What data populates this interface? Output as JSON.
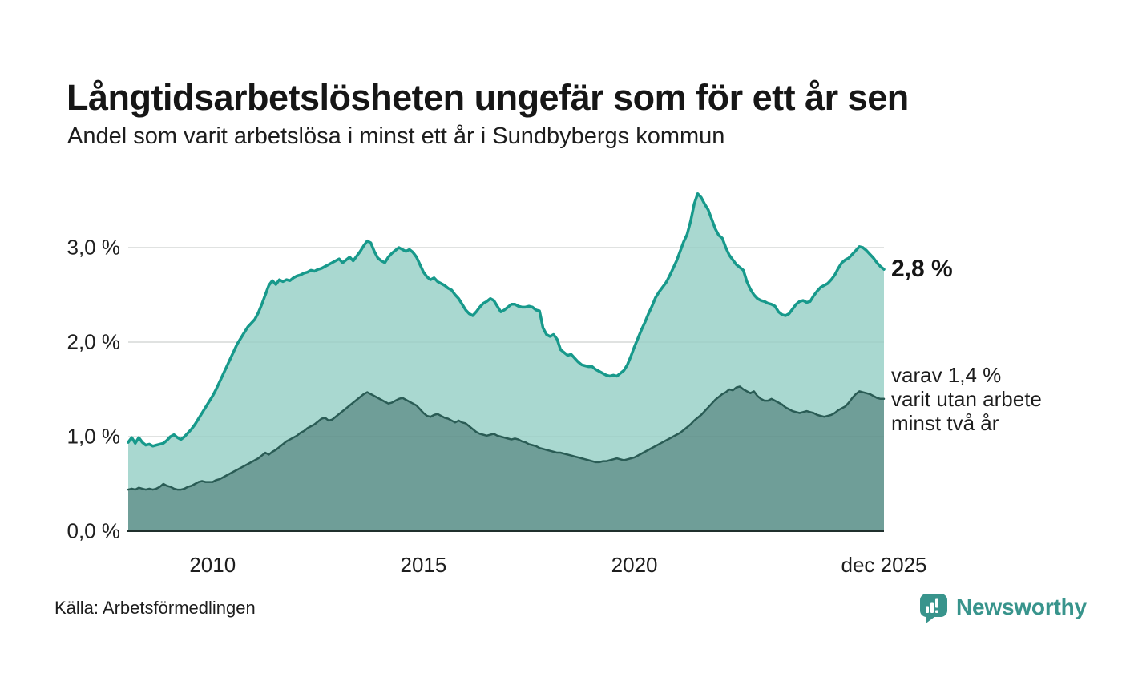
{
  "chart_data": {
    "type": "area",
    "title": "Långtidsarbetslösheten ungefär som för ett år sen",
    "subtitle": "Andel som varit arbetslösa i minst ett år i Sundbybergs kommun",
    "unit": "%",
    "x_axis": {
      "range_years": [
        2008.0,
        2025.917
      ],
      "ticks": [
        {
          "label": "2010",
          "year": 2010
        },
        {
          "label": "2015",
          "year": 2015
        },
        {
          "label": "2020",
          "year": 2020
        },
        {
          "label": "dec 2025",
          "year": 2025.917
        }
      ]
    },
    "y_axis": {
      "range": [
        0,
        3.6
      ],
      "gridline_values": [
        1,
        2,
        3
      ],
      "ticks": [
        {
          "label": "0,0 %",
          "value": 0
        },
        {
          "label": "1,0 %",
          "value": 1
        },
        {
          "label": "2,0 %",
          "value": 2
        },
        {
          "label": "3,0 %",
          "value": 3
        }
      ]
    },
    "series": [
      {
        "id": "unemployed-at-least-one-year",
        "label": "arbetslösa minst ett år",
        "start_year": 2008,
        "points_per_year": 12,
        "line_color": "#17998b",
        "fill_color": "#a9d8d0",
        "line_width": 3.5,
        "values": [
          0.94,
          0.99,
          0.93,
          0.99,
          0.94,
          0.91,
          0.92,
          0.9,
          0.91,
          0.92,
          0.93,
          0.96,
          1.0,
          1.02,
          0.99,
          0.97,
          1.0,
          1.04,
          1.08,
          1.13,
          1.19,
          1.25,
          1.31,
          1.37,
          1.43,
          1.5,
          1.58,
          1.66,
          1.74,
          1.82,
          1.9,
          1.98,
          2.04,
          2.1,
          2.16,
          2.2,
          2.24,
          2.31,
          2.4,
          2.5,
          2.6,
          2.65,
          2.61,
          2.66,
          2.64,
          2.66,
          2.65,
          2.68,
          2.7,
          2.71,
          2.73,
          2.74,
          2.76,
          2.75,
          2.77,
          2.78,
          2.8,
          2.82,
          2.84,
          2.86,
          2.88,
          2.84,
          2.87,
          2.9,
          2.86,
          2.91,
          2.96,
          3.02,
          3.07,
          3.05,
          2.96,
          2.89,
          2.86,
          2.84,
          2.9,
          2.94,
          2.97,
          3.0,
          2.98,
          2.96,
          2.98,
          2.95,
          2.9,
          2.82,
          2.74,
          2.69,
          2.66,
          2.68,
          2.64,
          2.62,
          2.6,
          2.57,
          2.55,
          2.5,
          2.46,
          2.4,
          2.34,
          2.3,
          2.28,
          2.32,
          2.37,
          2.41,
          2.43,
          2.46,
          2.44,
          2.38,
          2.32,
          2.34,
          2.37,
          2.4,
          2.4,
          2.38,
          2.37,
          2.37,
          2.38,
          2.37,
          2.34,
          2.33,
          2.15,
          2.08,
          2.06,
          2.08,
          2.03,
          1.92,
          1.89,
          1.86,
          1.87,
          1.83,
          1.79,
          1.76,
          1.75,
          1.74,
          1.74,
          1.71,
          1.69,
          1.67,
          1.65,
          1.64,
          1.65,
          1.64,
          1.67,
          1.7,
          1.76,
          1.85,
          1.95,
          2.04,
          2.13,
          2.21,
          2.3,
          2.38,
          2.47,
          2.53,
          2.58,
          2.63,
          2.7,
          2.78,
          2.86,
          2.96,
          3.06,
          3.14,
          3.28,
          3.46,
          3.57,
          3.53,
          3.46,
          3.4,
          3.3,
          3.2,
          3.13,
          3.1,
          3.0,
          2.92,
          2.87,
          2.82,
          2.79,
          2.76,
          2.64,
          2.56,
          2.5,
          2.46,
          2.44,
          2.43,
          2.41,
          2.4,
          2.38,
          2.32,
          2.29,
          2.28,
          2.3,
          2.35,
          2.4,
          2.43,
          2.44,
          2.42,
          2.43,
          2.49,
          2.54,
          2.58,
          2.6,
          2.62,
          2.66,
          2.71,
          2.78,
          2.84,
          2.87,
          2.89,
          2.93,
          2.97,
          3.01,
          3.0,
          2.97,
          2.93,
          2.89,
          2.84,
          2.8,
          2.77
        ]
      },
      {
        "id": "unemployed-at-least-two-years",
        "label": "varit utan arbete minst två år",
        "start_year": 2008,
        "points_per_year": 12,
        "line_color": "#2a5c55",
        "fill_color": "#6f9e98",
        "line_width": 2.5,
        "values": [
          0.44,
          0.45,
          0.44,
          0.46,
          0.45,
          0.44,
          0.45,
          0.44,
          0.45,
          0.47,
          0.5,
          0.48,
          0.47,
          0.45,
          0.44,
          0.44,
          0.45,
          0.47,
          0.48,
          0.5,
          0.52,
          0.53,
          0.52,
          0.52,
          0.52,
          0.54,
          0.55,
          0.57,
          0.59,
          0.61,
          0.63,
          0.65,
          0.67,
          0.69,
          0.71,
          0.73,
          0.75,
          0.77,
          0.8,
          0.83,
          0.81,
          0.84,
          0.86,
          0.89,
          0.92,
          0.95,
          0.97,
          0.99,
          1.01,
          1.04,
          1.06,
          1.09,
          1.11,
          1.13,
          1.16,
          1.19,
          1.2,
          1.17,
          1.18,
          1.21,
          1.24,
          1.27,
          1.3,
          1.33,
          1.36,
          1.39,
          1.42,
          1.45,
          1.47,
          1.45,
          1.43,
          1.41,
          1.39,
          1.37,
          1.35,
          1.36,
          1.38,
          1.4,
          1.41,
          1.39,
          1.37,
          1.35,
          1.33,
          1.29,
          1.25,
          1.22,
          1.21,
          1.23,
          1.24,
          1.22,
          1.2,
          1.19,
          1.17,
          1.15,
          1.17,
          1.15,
          1.14,
          1.11,
          1.08,
          1.05,
          1.03,
          1.02,
          1.01,
          1.02,
          1.03,
          1.01,
          1.0,
          0.99,
          0.98,
          0.97,
          0.98,
          0.97,
          0.95,
          0.94,
          0.92,
          0.91,
          0.9,
          0.88,
          0.87,
          0.86,
          0.85,
          0.84,
          0.83,
          0.83,
          0.82,
          0.81,
          0.8,
          0.79,
          0.78,
          0.77,
          0.76,
          0.75,
          0.74,
          0.73,
          0.73,
          0.74,
          0.74,
          0.75,
          0.76,
          0.77,
          0.76,
          0.75,
          0.76,
          0.77,
          0.78,
          0.8,
          0.82,
          0.84,
          0.86,
          0.88,
          0.9,
          0.92,
          0.94,
          0.96,
          0.98,
          1.0,
          1.02,
          1.04,
          1.07,
          1.1,
          1.13,
          1.17,
          1.2,
          1.23,
          1.27,
          1.31,
          1.35,
          1.39,
          1.42,
          1.45,
          1.47,
          1.5,
          1.49,
          1.52,
          1.53,
          1.5,
          1.48,
          1.46,
          1.48,
          1.43,
          1.4,
          1.38,
          1.38,
          1.4,
          1.38,
          1.36,
          1.34,
          1.31,
          1.29,
          1.27,
          1.26,
          1.25,
          1.26,
          1.27,
          1.26,
          1.25,
          1.23,
          1.22,
          1.21,
          1.22,
          1.23,
          1.25,
          1.28,
          1.3,
          1.32,
          1.36,
          1.41,
          1.45,
          1.48,
          1.47,
          1.46,
          1.45,
          1.43,
          1.41,
          1.4,
          1.4
        ]
      }
    ],
    "annotations": {
      "latest_total": {
        "text": "2,8 %"
      },
      "latest_two_year": {
        "lines": [
          "varav 1,4 %",
          "varit utan arbete",
          "minst två år"
        ]
      }
    },
    "legend": "none",
    "grid": "horizontal"
  },
  "colors": {
    "grid": "#d9d9d9",
    "grid_overlay": "rgba(25,50,48,0.07)",
    "axis": "#20302d",
    "brand_teal": "#38948c"
  },
  "footer": {
    "source_label": "Källa: Arbetsförmedlingen",
    "brand_name": "Newsworthy"
  }
}
